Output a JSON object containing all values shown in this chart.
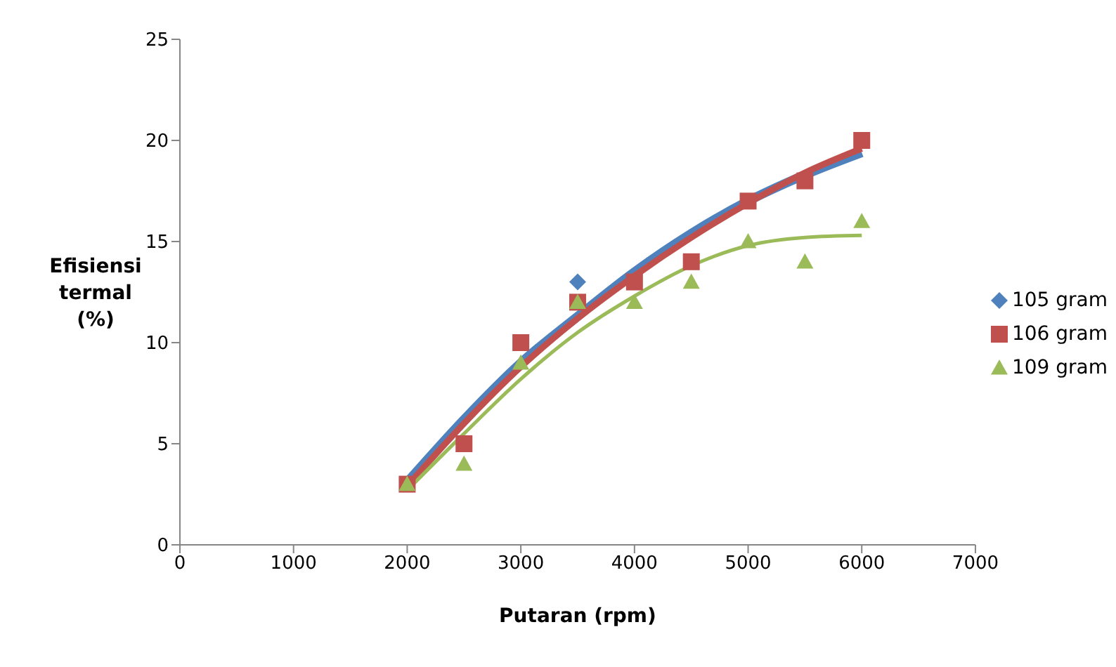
{
  "chart_data": {
    "type": "scatter",
    "xlabel": "Putaran (rpm)",
    "ylabel": "Efisiensi termal (%)",
    "x": [
      2000,
      2500,
      3000,
      3500,
      4000,
      4500,
      5000,
      5500,
      6000
    ],
    "series": [
      {
        "name": "105 gram",
        "color": "#4f81bd",
        "marker": "diamond",
        "values": [
          null,
          null,
          null,
          13,
          null,
          null,
          null,
          null,
          null
        ]
      },
      {
        "name": "106 gram",
        "color": "#c0504d",
        "marker": "square",
        "values": [
          3,
          5,
          10,
          12,
          13,
          14,
          17,
          18,
          20
        ]
      },
      {
        "name": "109 gram",
        "color": "#9bbb59",
        "marker": "triangle",
        "values": [
          3,
          4,
          9,
          12,
          12,
          13,
          15,
          14,
          16
        ]
      },
      {
        "type": "line",
        "color": "#4f81bd",
        "marker": "none",
        "values": [
          3.1,
          6.2,
          9,
          11.3,
          13.5,
          15.4,
          17,
          18.3,
          19.4
        ]
      },
      {
        "type": "line",
        "color": "#c0504d",
        "marker": "none",
        "values": [
          2.9,
          6,
          8.8,
          11.2,
          13.3,
          15.2,
          16.9,
          18.4,
          19.6
        ]
      },
      {
        "type": "line",
        "color": "#9bbb59",
        "marker": "none",
        "values": [
          2.7,
          5.5,
          8.2,
          10.5,
          12.3,
          13.8,
          14.8,
          15.2,
          15.3
        ]
      }
    ],
    "xlim": [
      0,
      7000
    ],
    "xticks": [
      0,
      1000,
      2000,
      3000,
      4000,
      5000,
      6000,
      7000
    ],
    "ylim": [
      0,
      25
    ],
    "yticks": [
      0,
      5,
      10,
      15,
      20,
      25
    ],
    "grid": false,
    "legend": "right"
  }
}
